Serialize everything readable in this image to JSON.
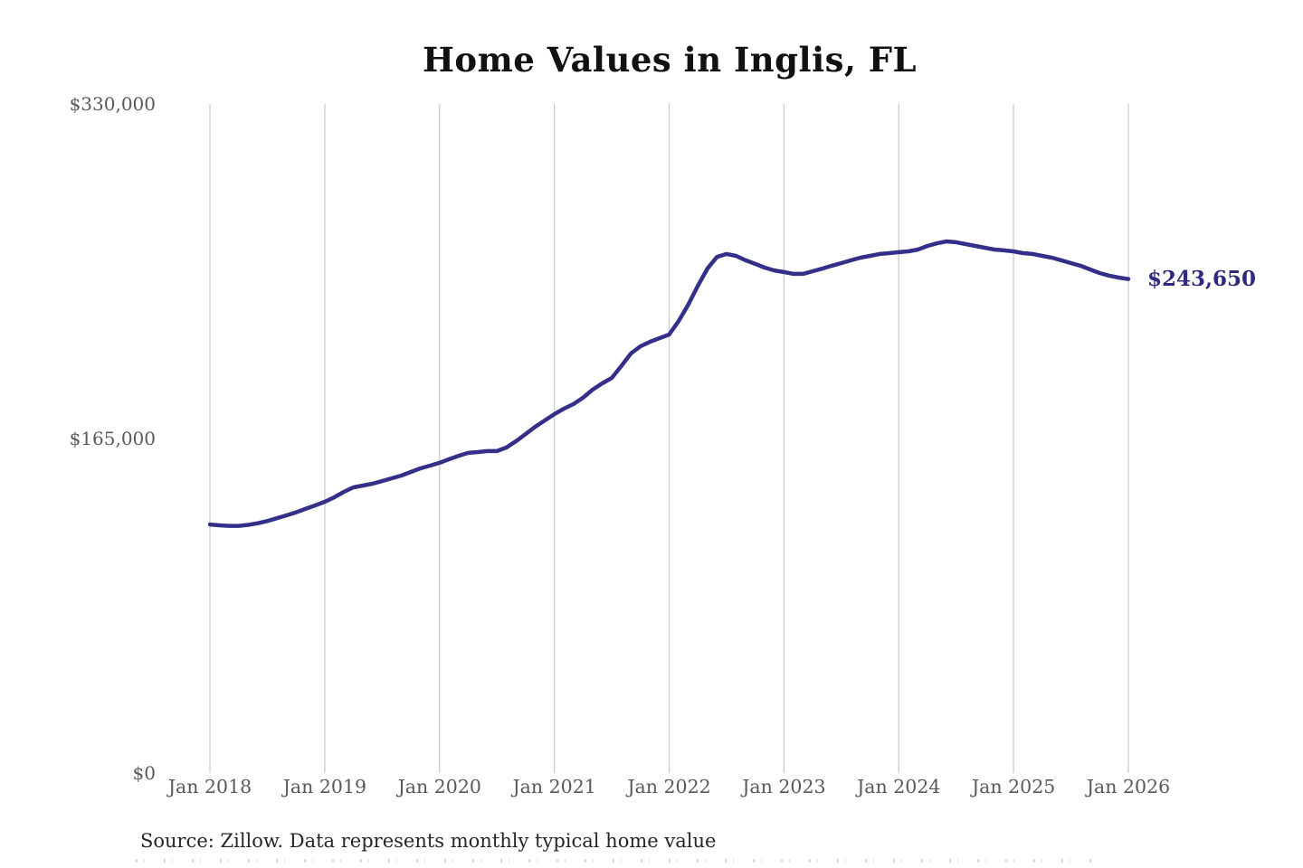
{
  "page": {
    "title": "Home Values in Inglis, FL",
    "source_note": "Source: Zillow. Data represents monthly typical home value",
    "end_value_label": "$243,650"
  },
  "colors": {
    "line": "#34308a",
    "end_label": "#2e2b7f",
    "grid": "#cccccc",
    "axis_text": "#595959",
    "title_text": "#111111",
    "source_text": "#262626",
    "background": "#ffffff"
  },
  "chart_data": {
    "type": "line",
    "title": "Home Values in Inglis, FL",
    "unit": "USD",
    "interval": "monthly",
    "x_start": "2018-01",
    "x_end": "2026-01",
    "x_tick_labels": [
      "Jan 2018",
      "Jan 2019",
      "Jan 2020",
      "Jan 2021",
      "Jan 2022",
      "Jan 2023",
      "Jan 2024",
      "Jan 2025",
      "Jan 2026"
    ],
    "y_ticks": [
      {
        "value": 0,
        "label": "$0"
      },
      {
        "value": 165000,
        "label": "$165,000"
      },
      {
        "value": 330000,
        "label": "$330,000"
      }
    ],
    "ylim": [
      0,
      330000
    ],
    "grid": "vertical-only",
    "legend": "none",
    "last_value": 243650,
    "last_value_label": "$243,650",
    "source": "Source: Zillow. Data represents monthly typical home value",
    "series": [
      {
        "name": "Typical home value",
        "values": [
          122600,
          122200,
          121900,
          121900,
          122400,
          123200,
          124300,
          125700,
          127100,
          128600,
          130300,
          132000,
          133800,
          136000,
          138700,
          140900,
          141800,
          142700,
          144000,
          145400,
          146700,
          148500,
          150300,
          151600,
          153000,
          154800,
          156500,
          157900,
          158300,
          158800,
          158800,
          160600,
          163700,
          167200,
          170800,
          173900,
          177000,
          179700,
          182000,
          185100,
          189100,
          192200,
          194900,
          200700,
          206900,
          210500,
          212700,
          214500,
          216300,
          223000,
          231000,
          240300,
          248800,
          254600,
          256000,
          255100,
          252900,
          251100,
          249300,
          247900,
          247100,
          246200,
          246200,
          247500,
          248800,
          250200,
          251500,
          252900,
          254200,
          255100,
          256000,
          256400,
          256900,
          257300,
          258200,
          260000,
          261300,
          262200,
          261800,
          260900,
          260000,
          259100,
          258200,
          257800,
          257300,
          256400,
          256000,
          255100,
          254200,
          252900,
          251500,
          250200,
          248400,
          246600,
          245300,
          244400,
          243650
        ]
      }
    ]
  }
}
